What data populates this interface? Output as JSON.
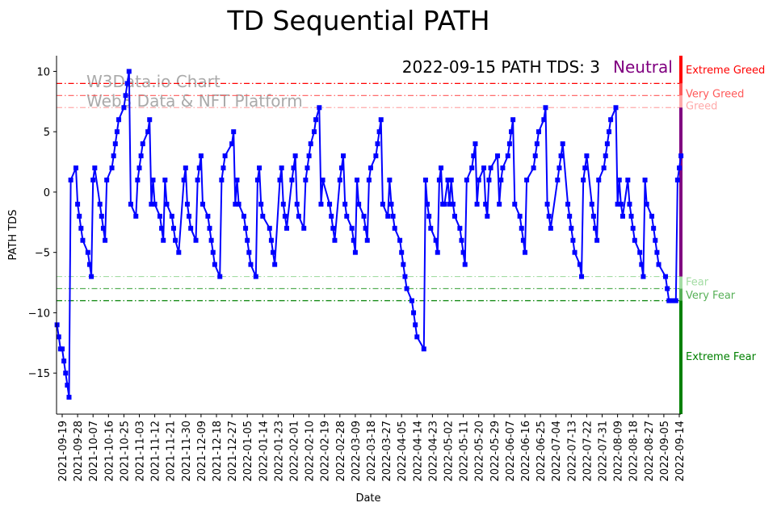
{
  "chart_data": {
    "type": "line",
    "title": "TD Sequential PATH",
    "xlabel": "Date",
    "ylabel": "PATH TDS",
    "ylim": [
      -18.4,
      11.3
    ],
    "yticks": [
      10,
      5,
      0,
      -5,
      -10,
      -15
    ],
    "x_units": "days since 2021-09-19",
    "xlim": [
      -3.5,
      361.5
    ],
    "xtick_days": [
      0,
      9,
      18,
      27,
      36,
      45,
      54,
      63,
      72,
      81,
      90,
      99,
      108,
      117,
      126,
      135,
      144,
      153,
      162,
      171,
      180,
      189,
      198,
      207,
      216,
      225,
      234,
      243,
      252,
      261,
      270,
      279,
      288,
      297,
      306,
      315,
      324,
      333,
      342,
      351,
      360
    ],
    "xtick_labels": [
      "2021-09-19",
      "2021-09-28",
      "2021-10-07",
      "2021-10-16",
      "2021-10-25",
      "2021-11-03",
      "2021-11-12",
      "2021-11-21",
      "2021-11-30",
      "2021-12-09",
      "2021-12-18",
      "2021-12-27",
      "2022-01-05",
      "2022-01-14",
      "2022-01-23",
      "2022-02-01",
      "2022-02-10",
      "2022-02-19",
      "2022-02-28",
      "2022-03-09",
      "2022-03-18",
      "2022-03-27",
      "2022-04-05",
      "2022-04-14",
      "2022-04-23",
      "2022-05-02",
      "2022-05-11",
      "2022-05-20",
      "2022-05-29",
      "2022-06-07",
      "2022-06-16",
      "2022-06-25",
      "2022-07-04",
      "2022-07-13",
      "2022-07-22",
      "2022-07-31",
      "2022-08-09",
      "2022-08-18",
      "2022-08-27",
      "2022-09-05",
      "2022-09-14"
    ],
    "series": [
      {
        "name": "PATH TDS",
        "color": "#0000ff",
        "points": [
          [
            -3,
            -11
          ],
          [
            -2,
            -12
          ],
          [
            -1,
            -13
          ],
          [
            0,
            -13
          ],
          [
            1,
            -14
          ],
          [
            2,
            -15
          ],
          [
            3,
            -16
          ],
          [
            4,
            -17
          ],
          [
            5,
            1
          ],
          [
            8,
            2
          ],
          [
            9,
            -1
          ],
          [
            10,
            -2
          ],
          [
            11,
            -3
          ],
          [
            12,
            -4
          ],
          [
            15,
            -5
          ],
          [
            16,
            -6
          ],
          [
            17,
            -7
          ],
          [
            18,
            1
          ],
          [
            19,
            2
          ],
          [
            22,
            -1
          ],
          [
            23,
            -2
          ],
          [
            24,
            -3
          ],
          [
            25,
            -4
          ],
          [
            26,
            1
          ],
          [
            29,
            2
          ],
          [
            30,
            3
          ],
          [
            31,
            4
          ],
          [
            32,
            5
          ],
          [
            33,
            6
          ],
          [
            36,
            7
          ],
          [
            37,
            8
          ],
          [
            38,
            9
          ],
          [
            39,
            10
          ],
          [
            40,
            -1
          ],
          [
            43,
            -2
          ],
          [
            44,
            1
          ],
          [
            45,
            2
          ],
          [
            46,
            3
          ],
          [
            47,
            4
          ],
          [
            50,
            5
          ],
          [
            51,
            6
          ],
          [
            52,
            -1
          ],
          [
            53,
            1
          ],
          [
            54,
            -1
          ],
          [
            57,
            -2
          ],
          [
            58,
            -3
          ],
          [
            59,
            -4
          ],
          [
            60,
            1
          ],
          [
            61,
            -1
          ],
          [
            64,
            -2
          ],
          [
            65,
            -3
          ],
          [
            66,
            -4
          ],
          [
            68,
            -5
          ],
          [
            71,
            1
          ],
          [
            72,
            2
          ],
          [
            73,
            -1
          ],
          [
            74,
            -2
          ],
          [
            75,
            -3
          ],
          [
            78,
            -4
          ],
          [
            79,
            1
          ],
          [
            80,
            2
          ],
          [
            81,
            3
          ],
          [
            82,
            -1
          ],
          [
            85,
            -2
          ],
          [
            86,
            -3
          ],
          [
            87,
            -4
          ],
          [
            88,
            -5
          ],
          [
            89,
            -6
          ],
          [
            92,
            -7
          ],
          [
            93,
            1
          ],
          [
            94,
            2
          ],
          [
            95,
            3
          ],
          [
            99,
            4
          ],
          [
            100,
            5
          ],
          [
            101,
            -1
          ],
          [
            102,
            1
          ],
          [
            103,
            -1
          ],
          [
            106,
            -2
          ],
          [
            107,
            -3
          ],
          [
            108,
            -4
          ],
          [
            109,
            -5
          ],
          [
            110,
            -6
          ],
          [
            113,
            -7
          ],
          [
            114,
            1
          ],
          [
            115,
            2
          ],
          [
            116,
            -1
          ],
          [
            117,
            -2
          ],
          [
            121,
            -3
          ],
          [
            122,
            -4
          ],
          [
            123,
            -5
          ],
          [
            124,
            -6
          ],
          [
            127,
            1
          ],
          [
            128,
            2
          ],
          [
            129,
            -1
          ],
          [
            130,
            -2
          ],
          [
            131,
            -3
          ],
          [
            134,
            1
          ],
          [
            135,
            2
          ],
          [
            136,
            3
          ],
          [
            137,
            -1
          ],
          [
            138,
            -2
          ],
          [
            141,
            -3
          ],
          [
            142,
            1
          ],
          [
            143,
            2
          ],
          [
            144,
            3
          ],
          [
            145,
            4
          ],
          [
            147,
            5
          ],
          [
            148,
            6
          ],
          [
            150,
            7
          ],
          [
            151,
            -1
          ],
          [
            152,
            1
          ],
          [
            156,
            -1
          ],
          [
            157,
            -2
          ],
          [
            158,
            -3
          ],
          [
            159,
            -4
          ],
          [
            162,
            1
          ],
          [
            163,
            2
          ],
          [
            164,
            3
          ],
          [
            165,
            -1
          ],
          [
            166,
            -2
          ],
          [
            169,
            -3
          ],
          [
            170,
            -4
          ],
          [
            171,
            -5
          ],
          [
            172,
            1
          ],
          [
            173,
            -1
          ],
          [
            176,
            -2
          ],
          [
            177,
            -3
          ],
          [
            178,
            -4
          ],
          [
            179,
            1
          ],
          [
            180,
            2
          ],
          [
            183,
            3
          ],
          [
            184,
            4
          ],
          [
            185,
            5
          ],
          [
            186,
            6
          ],
          [
            187,
            -1
          ],
          [
            190,
            -2
          ],
          [
            191,
            1
          ],
          [
            192,
            -1
          ],
          [
            193,
            -2
          ],
          [
            194,
            -3
          ],
          [
            197,
            -4
          ],
          [
            198,
            -5
          ],
          [
            199,
            -6
          ],
          [
            200,
            -7
          ],
          [
            201,
            -8
          ],
          [
            204,
            -9
          ],
          [
            205,
            -10
          ],
          [
            206,
            -11
          ],
          [
            207,
            -12
          ],
          [
            211,
            -13
          ],
          [
            212,
            1
          ],
          [
            213,
            -1
          ],
          [
            214,
            -2
          ],
          [
            215,
            -3
          ],
          [
            218,
            -4
          ],
          [
            219,
            -5
          ],
          [
            220,
            1
          ],
          [
            221,
            2
          ],
          [
            222,
            -1
          ],
          [
            223,
            -1
          ],
          [
            225,
            1
          ],
          [
            226,
            -1
          ],
          [
            227,
            1
          ],
          [
            228,
            -1
          ],
          [
            229,
            -2
          ],
          [
            232,
            -3
          ],
          [
            233,
            -4
          ],
          [
            234,
            -5
          ],
          [
            235,
            -6
          ],
          [
            236,
            1
          ],
          [
            239,
            2
          ],
          [
            240,
            3
          ],
          [
            241,
            4
          ],
          [
            242,
            -1
          ],
          [
            243,
            1
          ],
          [
            246,
            2
          ],
          [
            247,
            -1
          ],
          [
            248,
            -2
          ],
          [
            249,
            1
          ],
          [
            250,
            2
          ],
          [
            254,
            3
          ],
          [
            255,
            -1
          ],
          [
            256,
            1
          ],
          [
            257,
            2
          ],
          [
            260,
            3
          ],
          [
            261,
            4
          ],
          [
            262,
            5
          ],
          [
            263,
            6
          ],
          [
            264,
            -1
          ],
          [
            267,
            -2
          ],
          [
            268,
            -3
          ],
          [
            269,
            -4
          ],
          [
            270,
            -5
          ],
          [
            271,
            1
          ],
          [
            275,
            2
          ],
          [
            276,
            3
          ],
          [
            277,
            4
          ],
          [
            278,
            5
          ],
          [
            281,
            6
          ],
          [
            282,
            7
          ],
          [
            283,
            -1
          ],
          [
            284,
            -2
          ],
          [
            285,
            -3
          ],
          [
            289,
            1
          ],
          [
            290,
            2
          ],
          [
            291,
            3
          ],
          [
            292,
            4
          ],
          [
            295,
            -1
          ],
          [
            296,
            -2
          ],
          [
            297,
            -3
          ],
          [
            298,
            -4
          ],
          [
            299,
            -5
          ],
          [
            302,
            -6
          ],
          [
            303,
            -7
          ],
          [
            304,
            1
          ],
          [
            305,
            2
          ],
          [
            306,
            3
          ],
          [
            309,
            -1
          ],
          [
            310,
            -2
          ],
          [
            311,
            -3
          ],
          [
            312,
            -4
          ],
          [
            313,
            1
          ],
          [
            316,
            2
          ],
          [
            317,
            3
          ],
          [
            318,
            4
          ],
          [
            319,
            5
          ],
          [
            320,
            6
          ],
          [
            323,
            7
          ],
          [
            324,
            -1
          ],
          [
            325,
            1
          ],
          [
            326,
            -1
          ],
          [
            327,
            -2
          ],
          [
            330,
            1
          ],
          [
            331,
            -1
          ],
          [
            332,
            -2
          ],
          [
            333,
            -3
          ],
          [
            334,
            -4
          ],
          [
            337,
            -5
          ],
          [
            338,
            -6
          ],
          [
            339,
            -7
          ],
          [
            340,
            1
          ],
          [
            341,
            -1
          ],
          [
            344,
            -2
          ],
          [
            345,
            -3
          ],
          [
            346,
            -4
          ],
          [
            347,
            -5
          ],
          [
            348,
            -6
          ],
          [
            352,
            -7
          ],
          [
            353,
            -8
          ],
          [
            354,
            -9
          ],
          [
            356,
            -9
          ],
          [
            358,
            -9
          ],
          [
            359,
            1
          ],
          [
            360,
            2
          ],
          [
            361,
            3
          ]
        ]
      }
    ],
    "thresholds": [
      {
        "label": "Extreme Greed",
        "value": 9,
        "color": "#ff0000"
      },
      {
        "label": "Very Greed",
        "value": 8,
        "color": "#ff5a5a"
      },
      {
        "label": "Greed",
        "value": 7,
        "color": "#ffaaaa"
      },
      {
        "label": "Fear",
        "value": -7,
        "color": "#a3dca3"
      },
      {
        "label": "Very Fear",
        "value": -8,
        "color": "#58b058"
      },
      {
        "label": "Extreme Fear",
        "value": -9,
        "color": "#008000"
      }
    ],
    "neutral_color": "#800080",
    "annotation": {
      "text": "2022-09-15 PATH TDS: 3",
      "status": "Neutral",
      "status_color": "#800080"
    },
    "watermark": [
      "W3Data.io Chart",
      "Web3 Data & NFT Platform"
    ],
    "grid": false
  }
}
